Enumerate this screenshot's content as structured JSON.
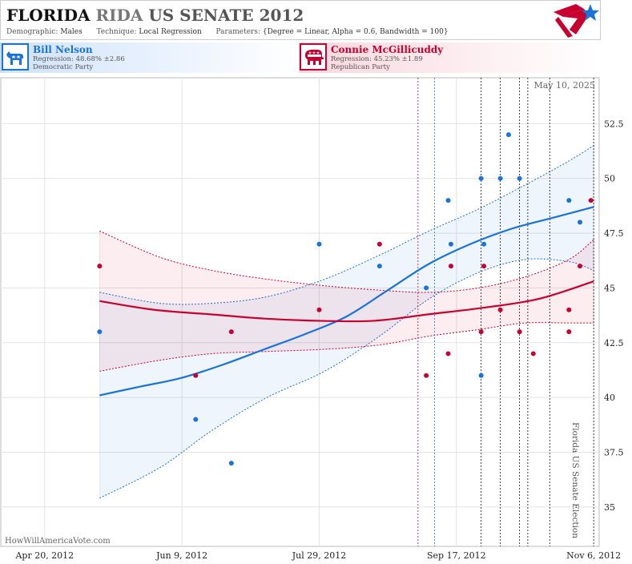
{
  "header": {
    "title_state": "FLORIDA",
    "title_fragment": "RIDA",
    "title_rest": "US SENATE 2012",
    "demographic_label": "Demographic:",
    "demographic_value": "Males",
    "technique_label": "Technique:",
    "technique_value": "Local Regression",
    "parameters_label": "Parameters:",
    "parameters_value": "{Degree = Linear, Alpha = 0.6, Bandwidth = 100}"
  },
  "candidates": {
    "dem": {
      "name": "Bill Nelson",
      "regression": "Regression: 48.68% ±2.86",
      "party": "Democratic Party",
      "color": "#1a73d9"
    },
    "rep": {
      "name": "Connie McGillicuddy",
      "regression": "Regression: 45.23% ±1.89",
      "party": "Republican Party",
      "color": "#c8002f"
    }
  },
  "chart_data": {
    "type": "scatter",
    "date_stamp": "May 10, 2025",
    "watermark": "HowWillAmericaVote.com",
    "event_label": "Florida US Senate Election",
    "x_ticks": [
      "Apr 20, 2012",
      "Jun 9, 2012",
      "Jul 29, 2012",
      "Sep 17, 2012",
      "Nov 6, 2012"
    ],
    "y_ticks": [
      "35",
      "37.5",
      "40",
      "42.5",
      "45",
      "47.5",
      "50",
      "52.5"
    ],
    "xlim": [
      "2012-04-04",
      "2012-11-08"
    ],
    "ylim": [
      33.2,
      54.6
    ],
    "grid": true,
    "poll_lines": [
      {
        "date": "2012-09-03",
        "color": "#c8002f"
      },
      {
        "date": "2012-09-09",
        "color": "#1a73d9"
      },
      {
        "date": "2012-09-26",
        "color": "#111111"
      },
      {
        "date": "2012-10-03",
        "color": "#111111"
      },
      {
        "date": "2012-10-10",
        "color": "#111111"
      },
      {
        "date": "2012-10-13",
        "color": "#111111"
      },
      {
        "date": "2012-10-21",
        "color": "#111111"
      },
      {
        "date": "2012-11-06",
        "color": "#111111"
      }
    ],
    "series": [
      {
        "name": "Bill Nelson",
        "color": "#1a73d9",
        "points": [
          [
            "2012-05-10",
            43
          ],
          [
            "2012-06-14",
            39
          ],
          [
            "2012-06-27",
            37
          ],
          [
            "2012-07-29",
            47
          ],
          [
            "2012-08-20",
            46
          ],
          [
            "2012-09-06",
            45
          ],
          [
            "2012-09-14",
            49
          ],
          [
            "2012-09-15",
            47
          ],
          [
            "2012-09-26",
            50
          ],
          [
            "2012-09-26",
            41
          ],
          [
            "2012-09-27",
            47
          ],
          [
            "2012-10-03",
            50
          ],
          [
            "2012-10-06",
            52
          ],
          [
            "2012-10-10",
            50
          ],
          [
            "2012-10-28",
            49
          ],
          [
            "2012-11-01",
            48
          ]
        ],
        "trend": [
          [
            "2012-05-10",
            40.1
          ],
          [
            "2012-05-25",
            40.5
          ],
          [
            "2012-06-09",
            40.9
          ],
          [
            "2012-06-24",
            41.5
          ],
          [
            "2012-07-09",
            42.2
          ],
          [
            "2012-07-24",
            42.9
          ],
          [
            "2012-08-08",
            43.7
          ],
          [
            "2012-08-23",
            44.9
          ],
          [
            "2012-09-07",
            46.1
          ],
          [
            "2012-09-22",
            47.0
          ],
          [
            "2012-10-07",
            47.7
          ],
          [
            "2012-10-22",
            48.2
          ],
          [
            "2012-11-06",
            48.7
          ]
        ],
        "band_upper": [
          [
            "2012-05-10",
            44.8
          ],
          [
            "2012-06-01",
            44.3
          ],
          [
            "2012-06-20",
            44.3
          ],
          [
            "2012-07-10",
            44.6
          ],
          [
            "2012-07-31",
            45.4
          ],
          [
            "2012-08-20",
            46.5
          ],
          [
            "2012-09-07",
            47.6
          ],
          [
            "2012-09-25",
            48.6
          ],
          [
            "2012-10-12",
            49.7
          ],
          [
            "2012-10-28",
            50.8
          ],
          [
            "2012-11-06",
            51.5
          ]
        ],
        "band_lower": [
          [
            "2012-05-10",
            35.4
          ],
          [
            "2012-06-01",
            36.8
          ],
          [
            "2012-06-20",
            38.5
          ],
          [
            "2012-07-10",
            40.0
          ],
          [
            "2012-07-31",
            41.2
          ],
          [
            "2012-08-20",
            42.8
          ],
          [
            "2012-09-07",
            44.5
          ],
          [
            "2012-09-25",
            45.7
          ],
          [
            "2012-10-12",
            46.3
          ],
          [
            "2012-10-28",
            46.2
          ],
          [
            "2012-11-06",
            45.8
          ]
        ]
      },
      {
        "name": "Connie McGillicuddy",
        "color": "#c8002f",
        "points": [
          [
            "2012-05-10",
            46
          ],
          [
            "2012-06-14",
            41
          ],
          [
            "2012-06-27",
            43
          ],
          [
            "2012-07-29",
            44
          ],
          [
            "2012-08-20",
            47
          ],
          [
            "2012-09-06",
            41
          ],
          [
            "2012-09-14",
            42
          ],
          [
            "2012-09-15",
            46
          ],
          [
            "2012-09-26",
            43
          ],
          [
            "2012-09-27",
            46
          ],
          [
            "2012-10-03",
            44
          ],
          [
            "2012-10-10",
            43
          ],
          [
            "2012-10-15",
            42
          ],
          [
            "2012-10-28",
            44
          ],
          [
            "2012-10-28",
            43
          ],
          [
            "2012-11-01",
            46
          ],
          [
            "2012-11-05",
            49
          ]
        ],
        "trend": [
          [
            "2012-05-10",
            44.4
          ],
          [
            "2012-05-30",
            44.0
          ],
          [
            "2012-06-19",
            43.8
          ],
          [
            "2012-07-09",
            43.6
          ],
          [
            "2012-07-29",
            43.5
          ],
          [
            "2012-08-18",
            43.5
          ],
          [
            "2012-09-07",
            43.8
          ],
          [
            "2012-09-27",
            44.1
          ],
          [
            "2012-10-17",
            44.5
          ],
          [
            "2012-11-06",
            45.3
          ]
        ],
        "band_upper": [
          [
            "2012-05-10",
            47.6
          ],
          [
            "2012-06-01",
            46.4
          ],
          [
            "2012-06-20",
            45.8
          ],
          [
            "2012-07-10",
            45.4
          ],
          [
            "2012-07-31",
            45.1
          ],
          [
            "2012-08-20",
            44.9
          ],
          [
            "2012-09-07",
            44.8
          ],
          [
            "2012-09-25",
            45.0
          ],
          [
            "2012-10-12",
            45.5
          ],
          [
            "2012-10-28",
            46.3
          ],
          [
            "2012-11-06",
            47.2
          ]
        ],
        "band_lower": [
          [
            "2012-05-10",
            41.2
          ],
          [
            "2012-06-01",
            41.7
          ],
          [
            "2012-06-20",
            42.0
          ],
          [
            "2012-07-10",
            42.1
          ],
          [
            "2012-07-31",
            42.2
          ],
          [
            "2012-08-20",
            42.4
          ],
          [
            "2012-09-07",
            42.8
          ],
          [
            "2012-09-25",
            43.1
          ],
          [
            "2012-10-12",
            43.4
          ],
          [
            "2012-10-28",
            43.4
          ],
          [
            "2012-11-06",
            43.4
          ]
        ]
      }
    ]
  }
}
